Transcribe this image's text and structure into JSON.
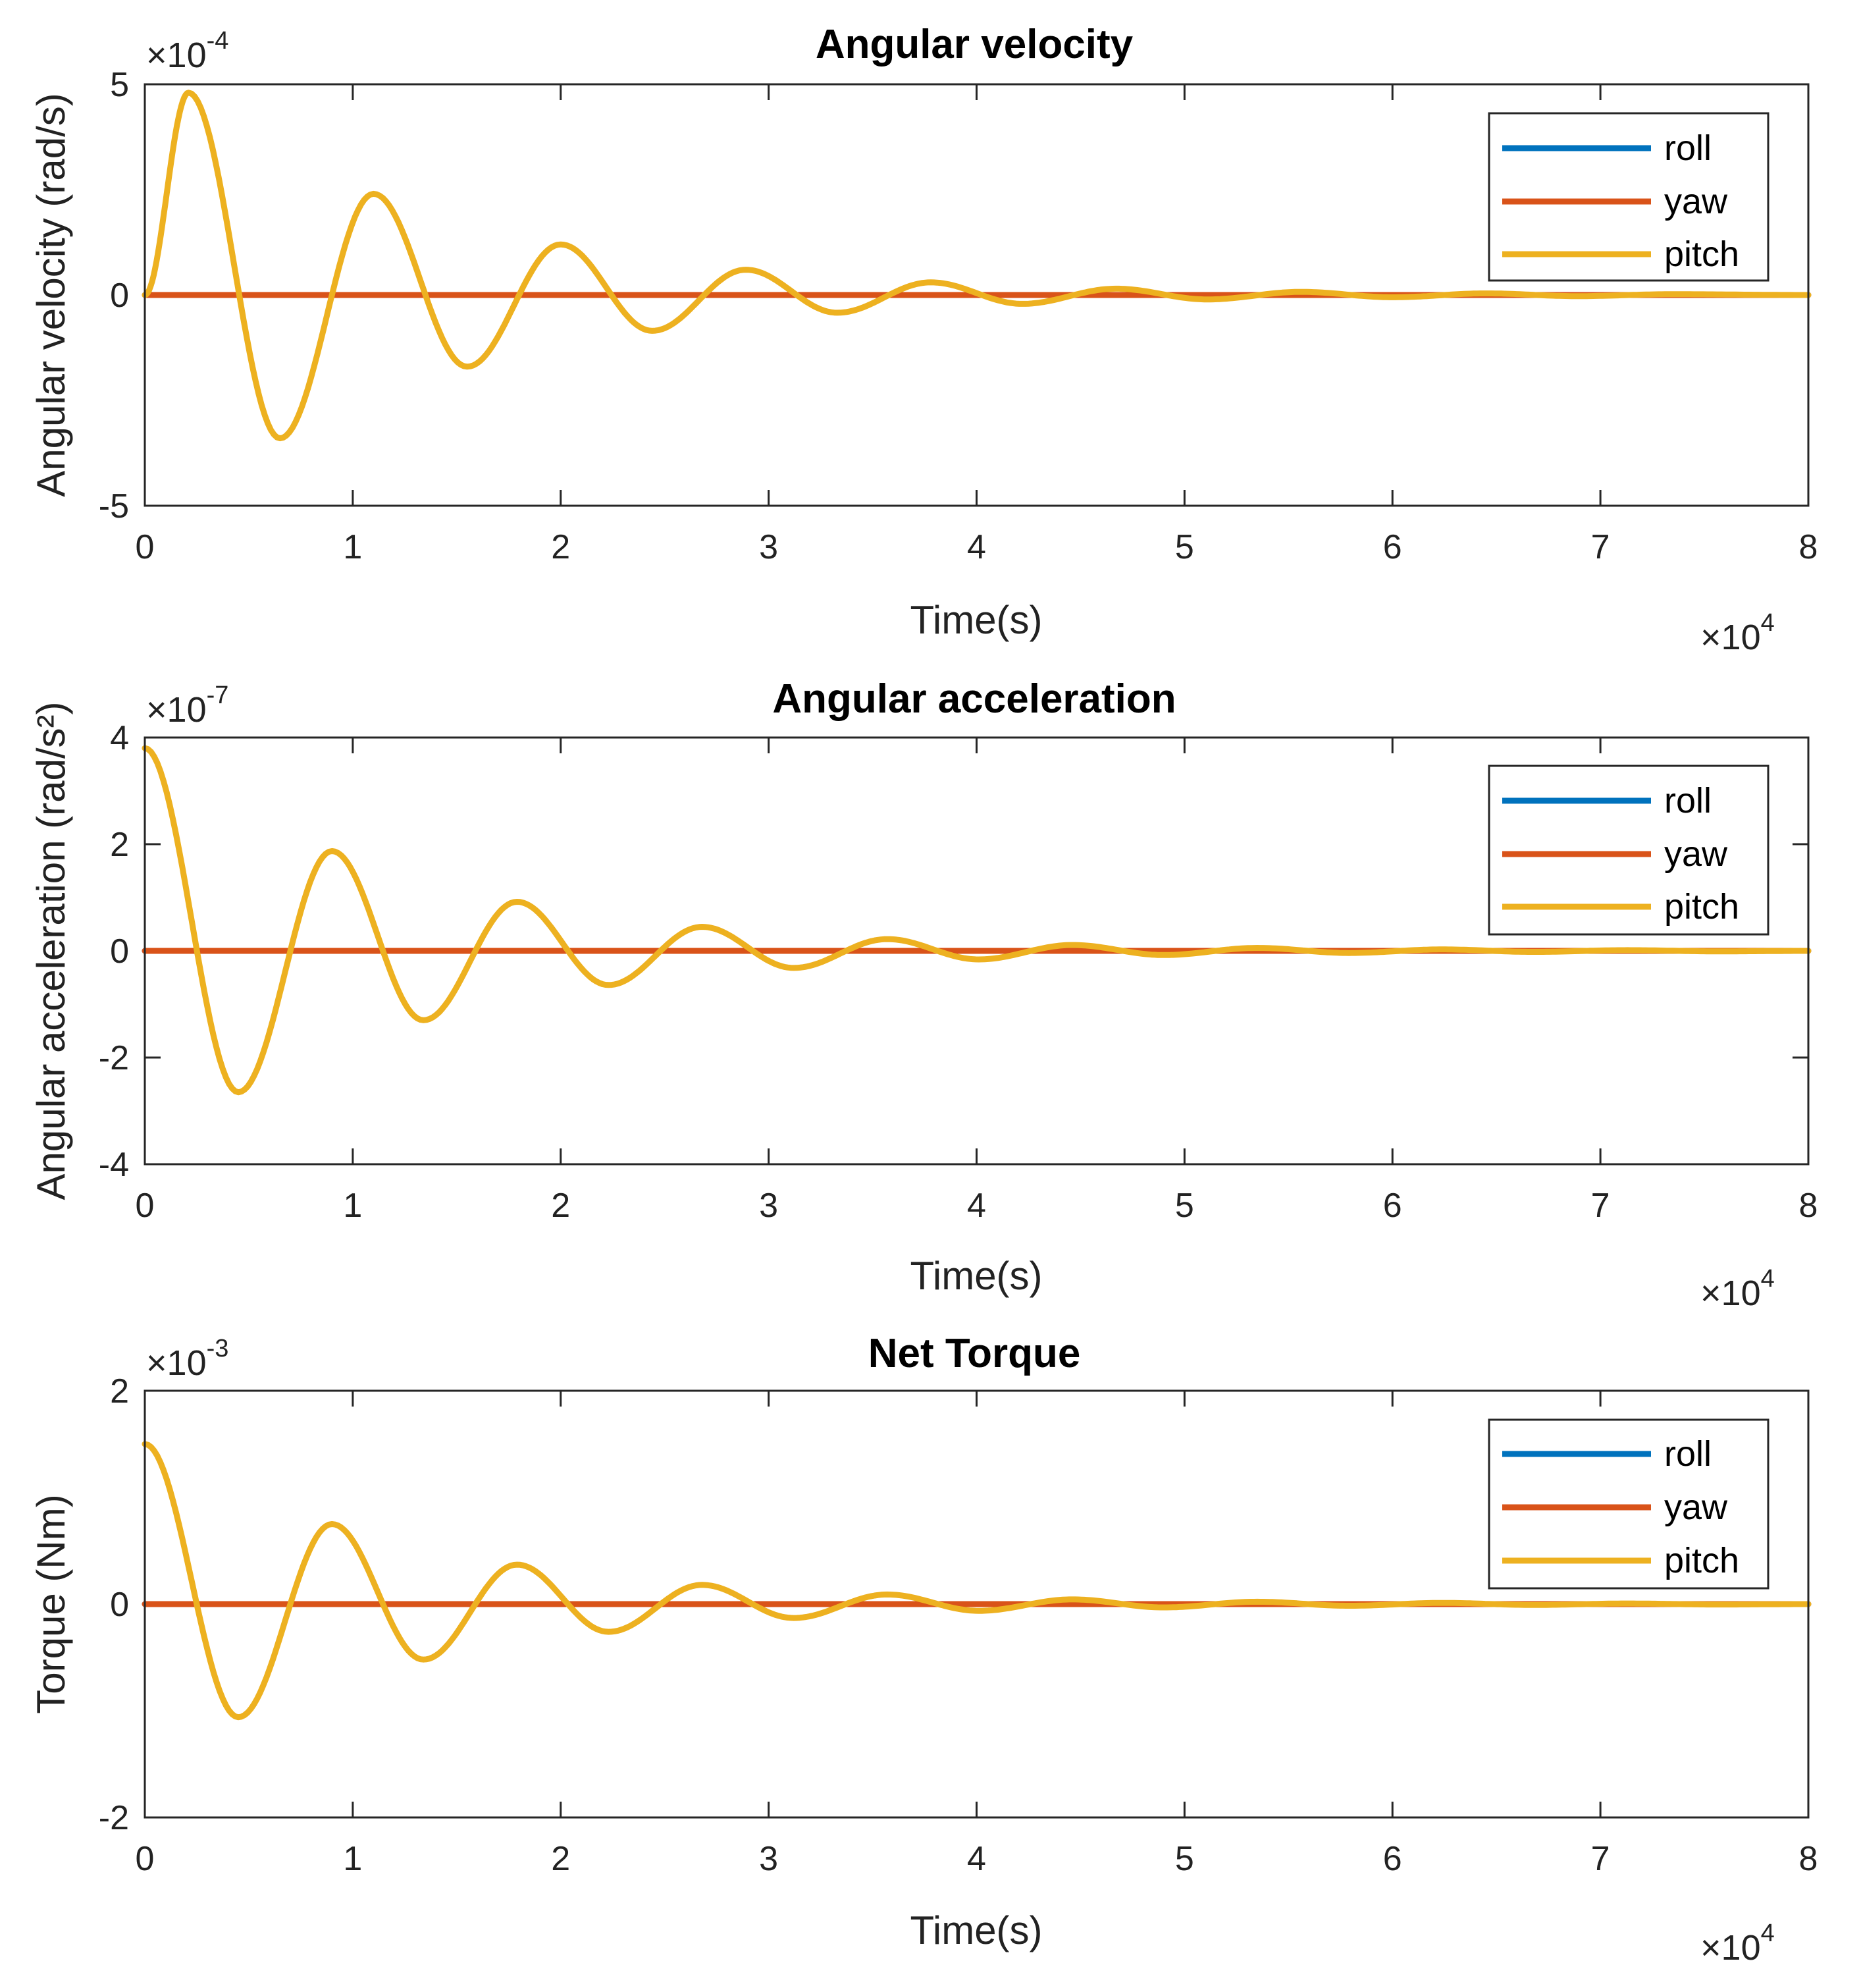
{
  "chart_data": [
    {
      "type": "line",
      "title": "Angular velocity",
      "xlabel": "Time(s)",
      "ylabel": "Angular velocity (rad/s)",
      "xlim": [
        0,
        80000
      ],
      "ylim": [
        -0.0005,
        0.0005
      ],
      "x_multiplier": "×10^4",
      "y_multiplier": "×10^-4",
      "xticks": [
        0,
        1,
        2,
        3,
        4,
        5,
        6,
        7,
        8
      ],
      "yticks": [
        -5,
        0,
        5
      ],
      "xtick_labels": [
        "0",
        "1",
        "2",
        "3",
        "4",
        "5",
        "6",
        "7",
        "8"
      ],
      "ytick_labels": [
        "-5",
        "0",
        "5"
      ],
      "legend": {
        "entries": [
          "roll",
          "yaw",
          "pitch"
        ],
        "position": "top-right"
      },
      "series": [
        {
          "name": "roll",
          "color": "#0072BD",
          "x": [
            0,
            80000
          ],
          "y": [
            0,
            0
          ]
        },
        {
          "name": "yaw",
          "color": "#D95319",
          "x": [
            0,
            80000
          ],
          "y": [
            0,
            0
          ]
        },
        {
          "name": "pitch",
          "color": "#EDB120",
          "x": [
            0,
            2100,
            6500,
            11000,
            15500,
            20000,
            24400,
            28900,
            33300,
            37800,
            42200,
            46700,
            51100,
            55600,
            60000,
            64500,
            68900,
            73400,
            80000
          ],
          "y": [
            0,
            0.00048,
            -0.00034,
            0.00024,
            -0.00017,
            0.00012,
            -8.5e-05,
            6e-05,
            -4.2e-05,
            3e-05,
            -2.1e-05,
            1.5e-05,
            -1.05e-05,
            7.5e-06,
            -5.3e-06,
            3.8e-06,
            -2.7e-06,
            1.9e-06,
            0
          ]
        }
      ]
    },
    {
      "type": "line",
      "title": "Angular acceleration",
      "xlabel": "Time(s)",
      "ylabel": "Angular acceleration (rad/s²)",
      "xlim": [
        0,
        80000
      ],
      "ylim": [
        -4e-07,
        4e-07
      ],
      "x_multiplier": "×10^4",
      "y_multiplier": "×10^-7",
      "xticks": [
        0,
        1,
        2,
        3,
        4,
        5,
        6,
        7,
        8
      ],
      "yticks": [
        -4,
        -2,
        0,
        2,
        4
      ],
      "xtick_labels": [
        "0",
        "1",
        "2",
        "3",
        "4",
        "5",
        "6",
        "7",
        "8"
      ],
      "ytick_labels": [
        "-4",
        "-2",
        "0",
        "2",
        "4"
      ],
      "legend": {
        "entries": [
          "roll",
          "yaw",
          "pitch"
        ],
        "position": "top-right"
      },
      "series": [
        {
          "name": "roll",
          "color": "#0072BD",
          "x": [
            0,
            80000
          ],
          "y": [
            0,
            0
          ]
        },
        {
          "name": "yaw",
          "color": "#D95319",
          "x": [
            0,
            80000
          ],
          "y": [
            0,
            0
          ]
        },
        {
          "name": "pitch",
          "color": "#EDB120",
          "x": [
            0,
            4500,
            9000,
            13400,
            17900,
            22300,
            26800,
            31200,
            35700,
            40100,
            44600,
            49000,
            53500,
            57900,
            62400,
            66800,
            71300,
            75700,
            80000
          ],
          "y": [
            3.8e-07,
            -2.65e-07,
            1.87e-07,
            -1.3e-07,
            9.2e-08,
            -6.4e-08,
            4.5e-08,
            -3.2e-08,
            2.2e-08,
            -1.6e-08,
            1.1e-08,
            -7.8e-09,
            5.5e-09,
            -3.9e-09,
            2.7e-09,
            -1.9e-09,
            1.3e-09,
            -9e-10,
            0
          ]
        }
      ]
    },
    {
      "type": "line",
      "title": "Net Torque",
      "xlabel": "Time(s)",
      "ylabel": "Torque (Nm)",
      "xlim": [
        0,
        80000
      ],
      "ylim": [
        -0.002,
        0.002
      ],
      "x_multiplier": "×10^4",
      "y_multiplier": "×10^-3",
      "xticks": [
        0,
        1,
        2,
        3,
        4,
        5,
        6,
        7,
        8
      ],
      "yticks": [
        -2,
        0,
        2
      ],
      "xtick_labels": [
        "0",
        "1",
        "2",
        "3",
        "4",
        "5",
        "6",
        "7",
        "8"
      ],
      "ytick_labels": [
        "-2",
        "0",
        "2"
      ],
      "legend": {
        "entries": [
          "roll",
          "yaw",
          "pitch"
        ],
        "position": "top-right"
      },
      "series": [
        {
          "name": "roll",
          "color": "#0072BD",
          "x": [
            0,
            80000
          ],
          "y": [
            0,
            0
          ]
        },
        {
          "name": "yaw",
          "color": "#D95319",
          "x": [
            0,
            80000
          ],
          "y": [
            0,
            0
          ]
        },
        {
          "name": "pitch",
          "color": "#EDB120",
          "x": [
            0,
            4500,
            9000,
            13400,
            17900,
            22300,
            26800,
            31200,
            35700,
            40100,
            44600,
            49000,
            53500,
            57900,
            62400,
            66800,
            71300,
            75700,
            80000
          ],
          "y": [
            0.0015,
            -0.00106,
            0.00075,
            -0.00052,
            0.00037,
            -0.00026,
            0.00018,
            -0.00013,
            9e-05,
            -6.3e-05,
            4.4e-05,
            -3.1e-05,
            2.2e-05,
            -1.55e-05,
            1.1e-05,
            -7.7e-06,
            5.4e-06,
            -3.8e-06,
            0
          ]
        }
      ]
    }
  ]
}
